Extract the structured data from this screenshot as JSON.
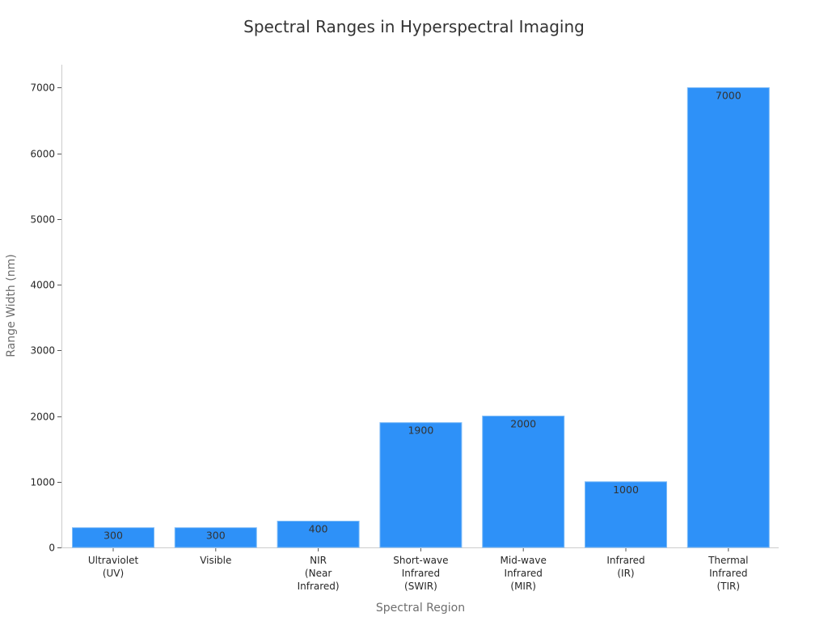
{
  "chart_data": {
    "type": "bar",
    "title": "Spectral Ranges in Hyperspectral Imaging",
    "xlabel": "Spectral Region",
    "ylabel": "Range Width (nm)",
    "categories": [
      [
        "Ultraviolet",
        "(UV)"
      ],
      [
        "Visible"
      ],
      [
        "NIR",
        "(Near",
        "Infrared)"
      ],
      [
        "Short-wave",
        "Infrared",
        "(SWIR)"
      ],
      [
        "Mid-wave",
        "Infrared",
        "(MIR)"
      ],
      [
        "Infrared",
        "(IR)"
      ],
      [
        "Thermal",
        "Infrared",
        "(TIR)"
      ]
    ],
    "values": [
      300,
      300,
      400,
      1900,
      2000,
      1000,
      7000
    ],
    "data_labels": [
      "300",
      "300",
      "400",
      "1900",
      "2000",
      "1000",
      "7000"
    ],
    "ylim": [
      0,
      7350
    ],
    "yticks": [
      0,
      1000,
      2000,
      3000,
      4000,
      5000,
      6000,
      7000
    ],
    "grid": false,
    "bar_color": "#2e91f8"
  }
}
